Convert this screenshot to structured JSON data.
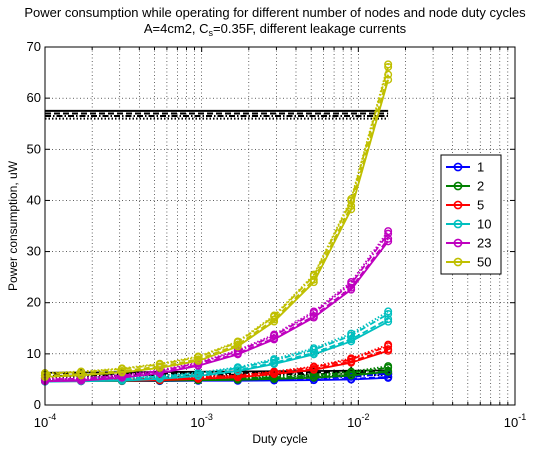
{
  "chart_data": {
    "type": "line",
    "title": "Power consumption while operating for different number of nodes and node duty cycles",
    "subtitle": {
      "prefix": "A=4cm2, C",
      "subscript": "s",
      "suffix": "=0.35F, different leakage currents"
    },
    "xlabel": "Duty cycle",
    "ylabel": "Power consumption, uW",
    "xscale": "log",
    "xlim": [
      0.0001,
      0.1
    ],
    "ylim": [
      0,
      70
    ],
    "yticks": [
      0,
      10,
      20,
      30,
      40,
      50,
      60,
      70
    ],
    "xticks": [
      {
        "value": 0.0001,
        "base": "10",
        "exp": "-4"
      },
      {
        "value": 0.001,
        "base": "10",
        "exp": "-3"
      },
      {
        "value": 0.01,
        "base": "10",
        "exp": "-2"
      },
      {
        "value": 0.1,
        "base": "10",
        "exp": "-1"
      }
    ],
    "grid": true,
    "legend_position": "right",
    "x": [
      0.0001,
      0.00017,
      0.00031,
      0.00054,
      0.00095,
      0.0017,
      0.0029,
      0.0052,
      0.009,
      0.0155
    ],
    "series": [
      {
        "name": "1",
        "color": "#0000ff",
        "values": [
          4.8,
          4.8,
          4.8,
          4.8,
          4.9,
          4.9,
          5.0,
          5.1,
          5.3,
          5.8
        ],
        "spread": [
          -0.5,
          -0.3,
          0.3,
          0.6
        ]
      },
      {
        "name": "2",
        "color": "#008000",
        "values": [
          4.8,
          4.8,
          4.8,
          4.9,
          5.0,
          5.1,
          5.3,
          5.6,
          6.1,
          7.0
        ],
        "spread": [
          -0.5,
          -0.3,
          0.3,
          0.6
        ]
      },
      {
        "name": "5",
        "color": "#ff0000",
        "values": [
          4.8,
          4.8,
          4.9,
          5.0,
          5.3,
          5.6,
          6.3,
          7.2,
          8.7,
          11.2
        ],
        "spread": [
          -0.6,
          -0.3,
          0.3,
          0.6
        ]
      },
      {
        "name": "10",
        "color": "#00bfbf",
        "values": [
          4.8,
          4.9,
          5.0,
          5.4,
          6.0,
          7.0,
          8.5,
          10.5,
          13.2,
          17.3
        ],
        "spread": [
          -1.0,
          -0.5,
          0.5,
          1.0
        ]
      },
      {
        "name": "23",
        "color": "#bf00bf",
        "values": [
          4.9,
          5.0,
          5.6,
          6.5,
          8.0,
          10.3,
          13.3,
          17.7,
          23.3,
          33.0
        ],
        "spread": [
          -1.0,
          -0.5,
          0.5,
          1.0
        ]
      },
      {
        "name": "50",
        "color": "#bfbf00",
        "values": [
          6.0,
          6.3,
          6.9,
          7.8,
          9.2,
          12.1,
          17.1,
          25.0,
          39.6,
          65.6
        ],
        "spread": [
          -2.0,
          -1.0,
          0.5,
          1.0
        ]
      }
    ],
    "reference_lines": [
      {
        "color": "#000000",
        "style": "solid",
        "values_high": 57.5,
        "values_low": 6.3
      },
      {
        "color": "#000000",
        "style": "dash",
        "values_high": 57.0,
        "values_low": 6.0
      },
      {
        "color": "#000000",
        "style": "dashdot",
        "values_high": 56.5,
        "values_low": 5.7
      },
      {
        "color": "#000000",
        "style": "dot",
        "values_high": 56.0,
        "values_low": 5.4
      }
    ],
    "reference_x_end": 0.0155
  }
}
